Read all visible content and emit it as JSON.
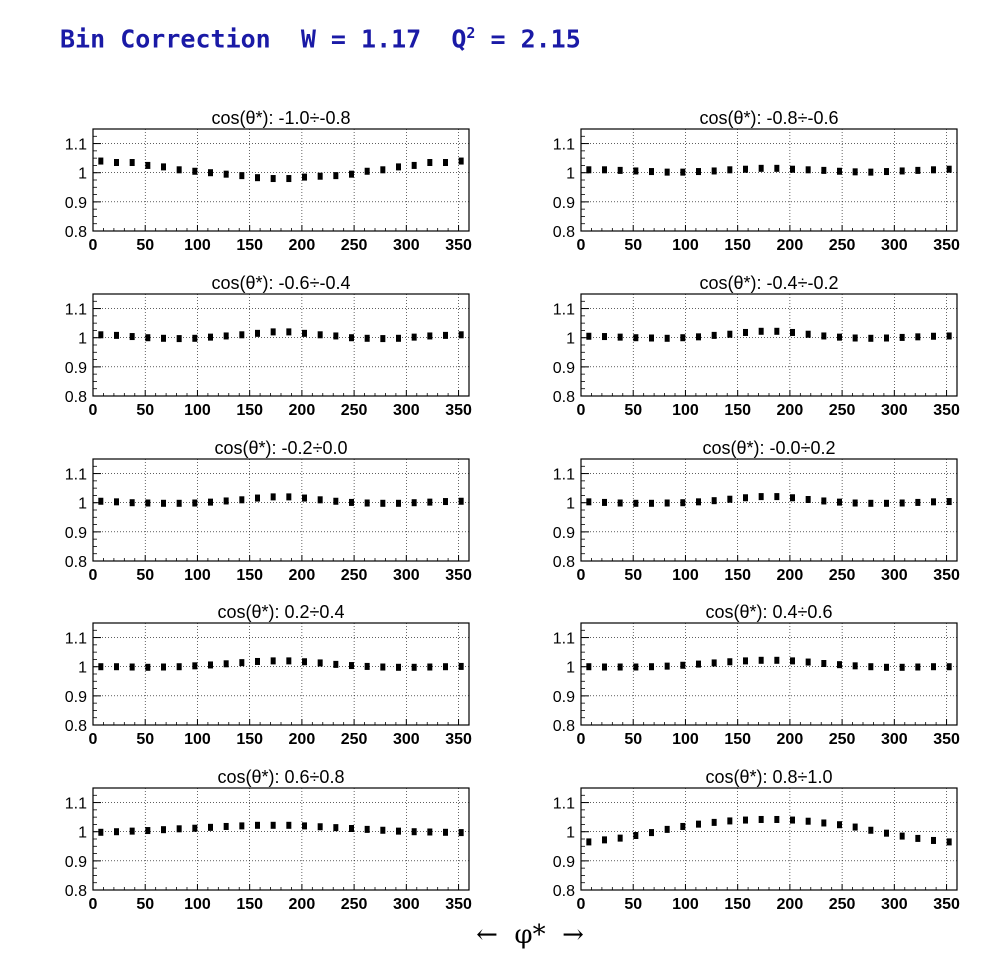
{
  "title": {
    "prefix": "Bin Correction  W = 1.17  Q",
    "superscript": "2",
    "suffix": " = 2.15"
  },
  "xaxis_label": "←  φ*  →",
  "chart_data": [
    {
      "type": "scatter",
      "title": "cos(θ*): -1.0÷-0.8",
      "x": [
        7.5,
        22.5,
        37.5,
        52.5,
        67.5,
        82.5,
        97.5,
        112.5,
        127.5,
        142.5,
        157.5,
        172.5,
        187.5,
        202.5,
        217.5,
        232.5,
        247.5,
        262.5,
        277.5,
        292.5,
        307.5,
        322.5,
        337.5,
        352.5
      ],
      "values": [
        1.04,
        1.035,
        1.035,
        1.025,
        1.02,
        1.01,
        1.005,
        1.0,
        0.995,
        0.99,
        0.983,
        0.98,
        0.98,
        0.985,
        0.988,
        0.99,
        0.995,
        1.005,
        1.01,
        1.02,
        1.025,
        1.035,
        1.035,
        1.04
      ],
      "xlim": [
        0,
        360
      ],
      "ylim": [
        0.8,
        1.15
      ],
      "xticks": [
        "0",
        "50",
        "100",
        "150",
        "200",
        "250",
        "300",
        "350"
      ],
      "yticks": [
        "0.8",
        "0.9",
        "1",
        "1.1"
      ],
      "grid": true
    },
    {
      "type": "scatter",
      "title": "cos(θ*): -0.8÷-0.6",
      "x": [
        7.5,
        22.5,
        37.5,
        52.5,
        67.5,
        82.5,
        97.5,
        112.5,
        127.5,
        142.5,
        157.5,
        172.5,
        187.5,
        202.5,
        217.5,
        232.5,
        247.5,
        262.5,
        277.5,
        292.5,
        307.5,
        322.5,
        337.5,
        352.5
      ],
      "values": [
        1.01,
        1.01,
        1.008,
        1.006,
        1.004,
        1.002,
        1.002,
        1.004,
        1.006,
        1.01,
        1.012,
        1.015,
        1.015,
        1.012,
        1.01,
        1.008,
        1.005,
        1.003,
        1.002,
        1.004,
        1.006,
        1.008,
        1.01,
        1.012
      ],
      "xlim": [
        0,
        360
      ],
      "ylim": [
        0.8,
        1.15
      ],
      "xticks": [
        "0",
        "50",
        "100",
        "150",
        "200",
        "250",
        "300",
        "350"
      ],
      "yticks": [
        "0.8",
        "0.9",
        "1",
        "1.1"
      ],
      "grid": true
    },
    {
      "type": "scatter",
      "title": "cos(θ*): -0.6÷-0.4",
      "x": [
        7.5,
        22.5,
        37.5,
        52.5,
        67.5,
        82.5,
        97.5,
        112.5,
        127.5,
        142.5,
        157.5,
        172.5,
        187.5,
        202.5,
        217.5,
        232.5,
        247.5,
        262.5,
        277.5,
        292.5,
        307.5,
        322.5,
        337.5,
        352.5
      ],
      "values": [
        1.01,
        1.008,
        1.004,
        1.0,
        0.998,
        0.997,
        0.998,
        1.002,
        1.006,
        1.01,
        1.015,
        1.02,
        1.02,
        1.015,
        1.01,
        1.006,
        1.0,
        0.998,
        0.997,
        0.998,
        1.002,
        1.006,
        1.008,
        1.01
      ],
      "xlim": [
        0,
        360
      ],
      "ylim": [
        0.8,
        1.15
      ],
      "xticks": [
        "0",
        "50",
        "100",
        "150",
        "200",
        "250",
        "300",
        "350"
      ],
      "yticks": [
        "0.8",
        "0.9",
        "1",
        "1.1"
      ],
      "grid": true
    },
    {
      "type": "scatter",
      "title": "cos(θ*): -0.4÷-0.2",
      "x": [
        7.5,
        22.5,
        37.5,
        52.5,
        67.5,
        82.5,
        97.5,
        112.5,
        127.5,
        142.5,
        157.5,
        172.5,
        187.5,
        202.5,
        217.5,
        232.5,
        247.5,
        262.5,
        277.5,
        292.5,
        307.5,
        322.5,
        337.5,
        352.5
      ],
      "values": [
        1.005,
        1.004,
        1.002,
        1.0,
        0.999,
        0.998,
        1.0,
        1.003,
        1.008,
        1.012,
        1.018,
        1.022,
        1.022,
        1.018,
        1.012,
        1.006,
        1.002,
        0.999,
        0.998,
        0.999,
        1.001,
        1.003,
        1.005,
        1.006
      ],
      "xlim": [
        0,
        360
      ],
      "ylim": [
        0.8,
        1.15
      ],
      "xticks": [
        "0",
        "50",
        "100",
        "150",
        "200",
        "250",
        "300",
        "350"
      ],
      "yticks": [
        "0.8",
        "0.9",
        "1",
        "1.1"
      ],
      "grid": true
    },
    {
      "type": "scatter",
      "title": "cos(θ*): -0.2÷0.0",
      "x": [
        7.5,
        22.5,
        37.5,
        52.5,
        67.5,
        82.5,
        97.5,
        112.5,
        127.5,
        142.5,
        157.5,
        172.5,
        187.5,
        202.5,
        217.5,
        232.5,
        247.5,
        262.5,
        277.5,
        292.5,
        307.5,
        322.5,
        337.5,
        352.5
      ],
      "values": [
        1.005,
        1.003,
        1.0,
        0.999,
        0.998,
        0.998,
        0.999,
        1.002,
        1.006,
        1.01,
        1.016,
        1.02,
        1.02,
        1.016,
        1.01,
        1.005,
        1.001,
        0.999,
        0.998,
        0.998,
        1.0,
        1.002,
        1.004,
        1.005
      ],
      "xlim": [
        0,
        360
      ],
      "ylim": [
        0.8,
        1.15
      ],
      "xticks": [
        "0",
        "50",
        "100",
        "150",
        "200",
        "250",
        "300",
        "350"
      ],
      "yticks": [
        "0.8",
        "0.9",
        "1",
        "1.1"
      ],
      "grid": true
    },
    {
      "type": "scatter",
      "title": "cos(θ*): -0.0÷0.2",
      "x": [
        7.5,
        22.5,
        37.5,
        52.5,
        67.5,
        82.5,
        97.5,
        112.5,
        127.5,
        142.5,
        157.5,
        172.5,
        187.5,
        202.5,
        217.5,
        232.5,
        247.5,
        262.5,
        277.5,
        292.5,
        307.5,
        322.5,
        337.5,
        352.5
      ],
      "values": [
        1.003,
        1.001,
        0.999,
        0.998,
        0.998,
        0.999,
        1.0,
        1.003,
        1.007,
        1.012,
        1.017,
        1.021,
        1.021,
        1.017,
        1.011,
        1.006,
        1.002,
        0.999,
        0.998,
        0.998,
        0.999,
        1.001,
        1.003,
        1.004
      ],
      "xlim": [
        0,
        360
      ],
      "ylim": [
        0.8,
        1.15
      ],
      "xticks": [
        "0",
        "50",
        "100",
        "150",
        "200",
        "250",
        "300",
        "350"
      ],
      "yticks": [
        "0.8",
        "0.9",
        "1",
        "1.1"
      ],
      "grid": true
    },
    {
      "type": "scatter",
      "title": "cos(θ*): 0.2÷0.4",
      "x": [
        7.5,
        22.5,
        37.5,
        52.5,
        67.5,
        82.5,
        97.5,
        112.5,
        127.5,
        142.5,
        157.5,
        172.5,
        187.5,
        202.5,
        217.5,
        232.5,
        247.5,
        262.5,
        277.5,
        292.5,
        307.5,
        322.5,
        337.5,
        352.5
      ],
      "values": [
        1.0,
        1.0,
        0.999,
        0.998,
        0.999,
        1.0,
        1.003,
        1.006,
        1.01,
        1.014,
        1.018,
        1.02,
        1.02,
        1.017,
        1.013,
        1.008,
        1.004,
        1.001,
        0.999,
        0.998,
        0.998,
        0.999,
        1.0,
        1.001
      ],
      "xlim": [
        0,
        360
      ],
      "ylim": [
        0.8,
        1.15
      ],
      "xticks": [
        "0",
        "50",
        "100",
        "150",
        "200",
        "250",
        "300",
        "350"
      ],
      "yticks": [
        "0.8",
        "0.9",
        "1",
        "1.1"
      ],
      "grid": true
    },
    {
      "type": "scatter",
      "title": "cos(θ*): 0.4÷0.6",
      "x": [
        7.5,
        22.5,
        37.5,
        52.5,
        67.5,
        82.5,
        97.5,
        112.5,
        127.5,
        142.5,
        157.5,
        172.5,
        187.5,
        202.5,
        217.5,
        232.5,
        247.5,
        262.5,
        277.5,
        292.5,
        307.5,
        322.5,
        337.5,
        352.5
      ],
      "values": [
        1.0,
        0.999,
        0.999,
        0.999,
        1.0,
        1.002,
        1.005,
        1.009,
        1.013,
        1.017,
        1.02,
        1.022,
        1.022,
        1.02,
        1.016,
        1.011,
        1.007,
        1.003,
        1.0,
        0.998,
        0.998,
        0.999,
        1.0,
        1.0
      ],
      "xlim": [
        0,
        360
      ],
      "ylim": [
        0.8,
        1.15
      ],
      "xticks": [
        "0",
        "50",
        "100",
        "150",
        "200",
        "250",
        "300",
        "350"
      ],
      "yticks": [
        "0.8",
        "0.9",
        "1",
        "1.1"
      ],
      "grid": true
    },
    {
      "type": "scatter",
      "title": "cos(θ*): 0.6÷0.8",
      "x": [
        7.5,
        22.5,
        37.5,
        52.5,
        67.5,
        82.5,
        97.5,
        112.5,
        127.5,
        142.5,
        157.5,
        172.5,
        187.5,
        202.5,
        217.5,
        232.5,
        247.5,
        262.5,
        277.5,
        292.5,
        307.5,
        322.5,
        337.5,
        352.5
      ],
      "values": [
        0.998,
        1.0,
        1.002,
        1.004,
        1.007,
        1.01,
        1.012,
        1.015,
        1.018,
        1.02,
        1.022,
        1.022,
        1.022,
        1.02,
        1.017,
        1.014,
        1.011,
        1.008,
        1.005,
        1.002,
        1.0,
        0.999,
        0.998,
        0.997
      ],
      "xlim": [
        0,
        360
      ],
      "ylim": [
        0.8,
        1.15
      ],
      "xticks": [
        "0",
        "50",
        "100",
        "150",
        "200",
        "250",
        "300",
        "350"
      ],
      "yticks": [
        "0.8",
        "0.9",
        "1",
        "1.1"
      ],
      "grid": true
    },
    {
      "type": "scatter",
      "title": "cos(θ*): 0.8÷1.0",
      "x": [
        7.5,
        22.5,
        37.5,
        52.5,
        67.5,
        82.5,
        97.5,
        112.5,
        127.5,
        142.5,
        157.5,
        172.5,
        187.5,
        202.5,
        217.5,
        232.5,
        247.5,
        262.5,
        277.5,
        292.5,
        307.5,
        322.5,
        337.5,
        352.5
      ],
      "values": [
        0.965,
        0.972,
        0.978,
        0.987,
        0.997,
        1.008,
        1.018,
        1.026,
        1.032,
        1.037,
        1.04,
        1.042,
        1.042,
        1.04,
        1.036,
        1.03,
        1.024,
        1.016,
        1.005,
        0.995,
        0.985,
        0.977,
        0.97,
        0.965
      ],
      "xlim": [
        0,
        360
      ],
      "ylim": [
        0.8,
        1.15
      ],
      "xticks": [
        "0",
        "50",
        "100",
        "150",
        "200",
        "250",
        "300",
        "350"
      ],
      "yticks": [
        "0.8",
        "0.9",
        "1",
        "1.1"
      ],
      "grid": true
    }
  ]
}
